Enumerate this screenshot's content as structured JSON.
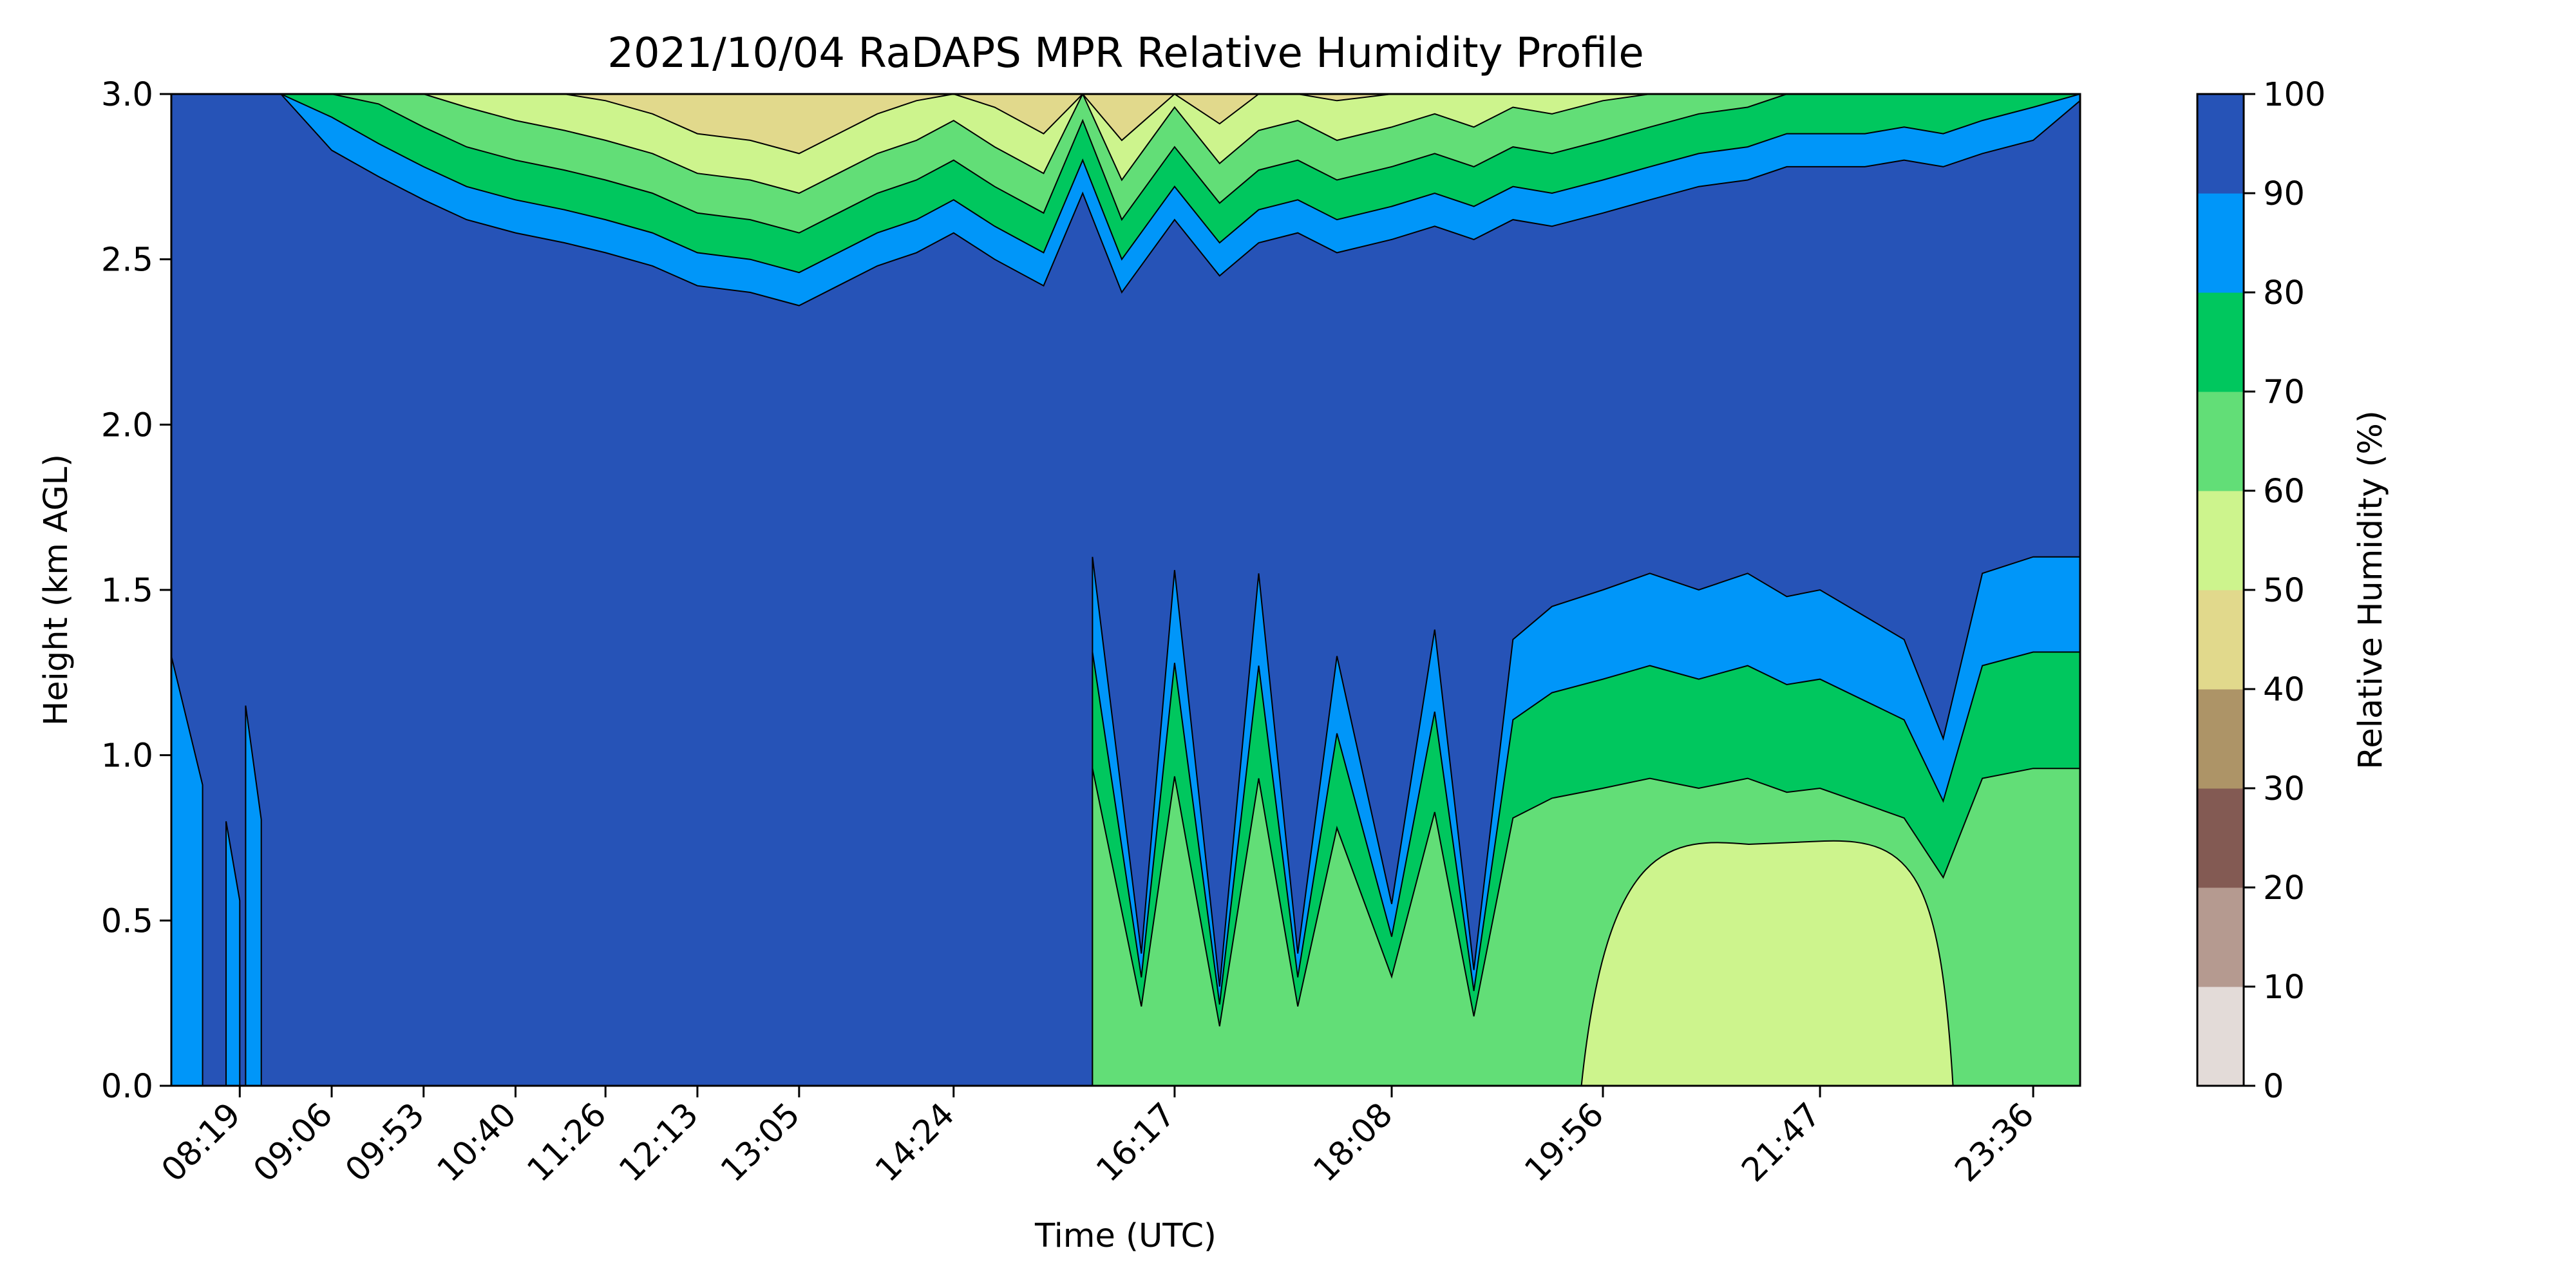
{
  "chart_data": {
    "type": "heatmap",
    "subtype": "filled-contour",
    "title": "2021/10/04 RaDAPS MPR Relative Humidity Profile",
    "xlabel": "Time (UTC)",
    "ylabel": "Height (km AGL)",
    "colorbar_label": "Relative Humidity (%)",
    "xlim": [
      "07:44",
      "24:00"
    ],
    "ylim": [
      0.0,
      3.0
    ],
    "x_ticks": [
      "08:19",
      "09:06",
      "09:53",
      "10:40",
      "11:26",
      "12:13",
      "13:05",
      "14:24",
      "16:17",
      "18:08",
      "19:56",
      "21:47",
      "23:36"
    ],
    "y_ticks": [
      "0.0",
      "0.5",
      "1.0",
      "1.5",
      "2.0",
      "2.5",
      "3.0"
    ],
    "colorbar_ticks": [
      "0",
      "10",
      "20",
      "30",
      "40",
      "50",
      "60",
      "70",
      "80",
      "90",
      "100"
    ],
    "contour_levels": [
      0,
      10,
      20,
      30,
      40,
      50,
      60,
      70,
      80,
      90,
      100
    ],
    "level_colors": [
      "#e3dbd8",
      "#b59a90",
      "#835a53",
      "#ad9467",
      "#e1d98c",
      "#cdf48d",
      "#62de77",
      "#00c75e",
      "#0096f9",
      "#2653b7"
    ],
    "regions": {
      "humid_floor_km_top_edge": {
        "times": [
          "07:44",
          "08:00",
          "08:19",
          "08:40",
          "09:06",
          "09:30",
          "09:53",
          "10:15",
          "10:40",
          "11:05",
          "11:26",
          "11:50",
          "12:13",
          "12:40",
          "13:05",
          "13:25",
          "13:45",
          "14:05",
          "14:24",
          "14:45",
          "15:10",
          "15:30",
          "15:50",
          "16:17",
          "16:40",
          "17:00",
          "17:20",
          "17:40",
          "18:08",
          "18:30",
          "18:50",
          "19:10",
          "19:30",
          "19:56",
          "20:20",
          "20:45",
          "21:10",
          "21:30",
          "21:47",
          "22:10",
          "22:30",
          "22:50",
          "23:10",
          "23:36",
          "24:00"
        ],
        "rh90_top_km": [
          3.0,
          3.0,
          3.0,
          3.0,
          2.83,
          2.75,
          2.68,
          2.62,
          2.58,
          2.55,
          2.52,
          2.48,
          2.42,
          2.4,
          2.36,
          2.42,
          2.48,
          2.52,
          2.58,
          2.5,
          2.42,
          2.7,
          2.4,
          2.62,
          2.45,
          2.55,
          2.58,
          2.52,
          2.56,
          2.6,
          2.56,
          2.62,
          2.6,
          2.64,
          2.68,
          2.72,
          2.74,
          2.78,
          2.78,
          2.78,
          2.8,
          2.78,
          2.82,
          2.86,
          2.98
        ]
      },
      "lower_dry_layer_rh90_top_km": {
        "times": [
          "15:35",
          "16:00",
          "16:17",
          "16:40",
          "17:00",
          "17:20",
          "17:40",
          "18:08",
          "18:30",
          "18:50",
          "19:10",
          "19:30",
          "19:56",
          "20:20",
          "20:45",
          "21:10",
          "21:30",
          "21:47",
          "22:10",
          "22:30",
          "22:50",
          "23:10",
          "23:36",
          "24:00"
        ],
        "values": [
          1.6,
          0.4,
          1.56,
          0.3,
          1.55,
          0.4,
          1.3,
          0.55,
          1.38,
          0.35,
          1.35,
          1.45,
          1.5,
          1.55,
          1.5,
          1.55,
          1.48,
          1.5,
          1.42,
          1.35,
          1.05,
          1.55,
          1.6,
          1.6
        ]
      },
      "rh70_max_value_plateau": {
        "label_range": "50-60",
        "time_span": [
          "19:45",
          "22:55"
        ],
        "height_km": 0.75
      }
    }
  }
}
